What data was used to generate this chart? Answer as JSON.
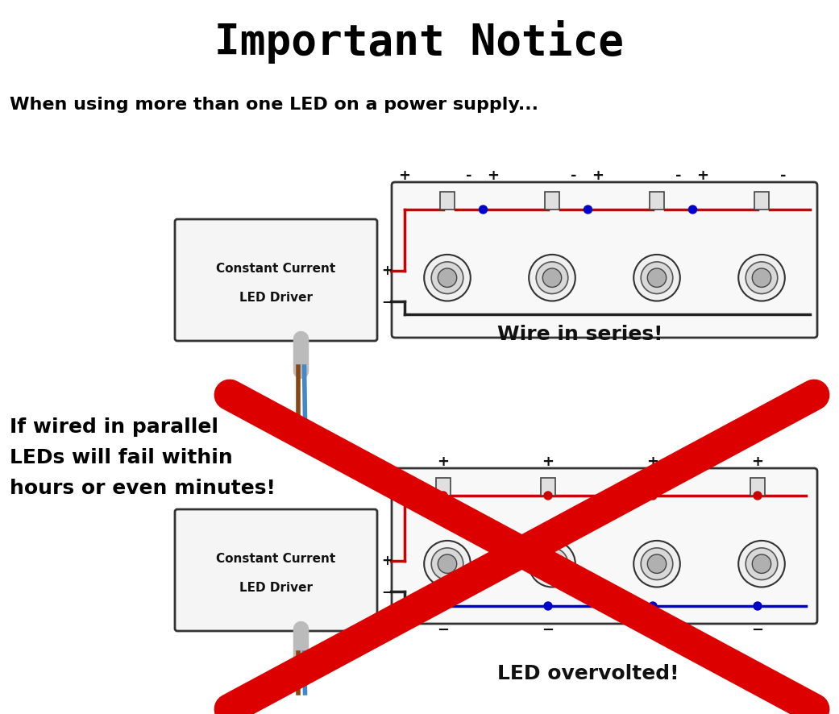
{
  "title": "Important Notice",
  "subtitle": "When using more than one LED on a power supply...",
  "warning_text": [
    "If wired in parallel",
    "LEDs will fail within",
    "hours or even minutes!"
  ],
  "series_label": "Wire in series!",
  "parallel_label": "LED overvolted!",
  "driver_label1": "Constant Current",
  "driver_label2": "LED Driver",
  "bg_color": "#ffffff",
  "box_color": "#d0d0d0",
  "led_outer_color": "#e8e8e8",
  "led_mid_color": "#c0c0c0",
  "led_inner_color": "#a0a0a0",
  "red_wire": "#cc0000",
  "blue_dot": "#0000cc",
  "red_cross": "#dd0000",
  "n_leds": 4
}
